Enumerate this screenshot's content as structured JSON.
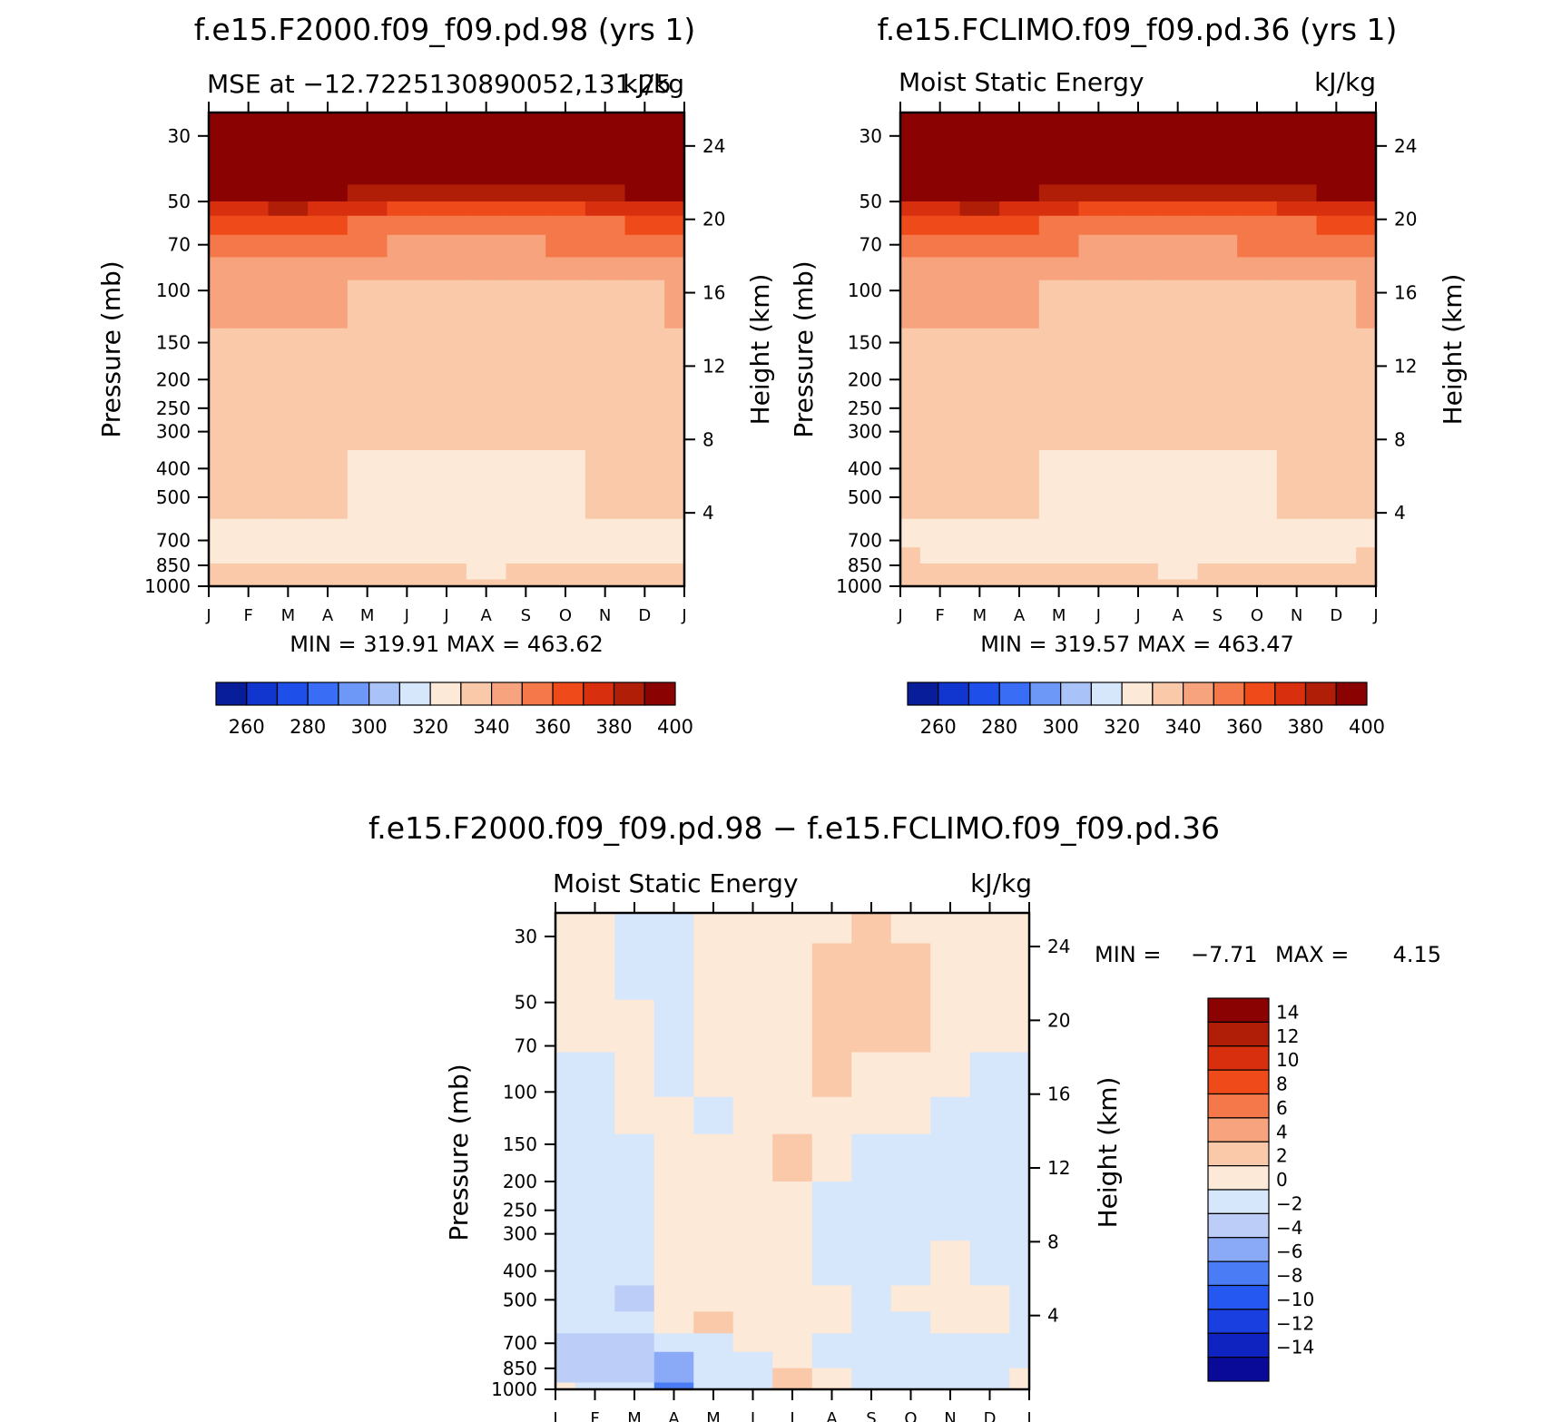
{
  "chart_data": [
    {
      "type": "heatmap",
      "title": "f.e15.F2000.f09_f09.pd.98 (yrs  1)",
      "left_string": "MSE at −12.7225130890052,131.25",
      "right_string": "kJ/kg",
      "xlabel": "",
      "ylabel": "Pressure (mb)",
      "ylabel_right": "Height (km)",
      "x_ticks": [
        "J",
        "F",
        "M",
        "A",
        "M",
        "J",
        "J",
        "A",
        "S",
        "O",
        "N",
        "D",
        "J"
      ],
      "y_ticks": [
        "30",
        "50",
        "70",
        "100",
        "150",
        "200",
        "250",
        "300",
        "400",
        "500",
        "700",
        "850",
        "1000"
      ],
      "y_ticks_right": [
        "24",
        "20",
        "16",
        "12",
        "8",
        "4"
      ],
      "ylim": [
        1000,
        25
      ],
      "min_max_text": "MIN = 319.91  MAX = 463.62",
      "colorbar_labels": [
        "260",
        "280",
        "300",
        "320",
        "340",
        "360",
        "380",
        "400"
      ],
      "colorbar_levels": [
        250,
        260,
        270,
        280,
        290,
        300,
        310,
        320,
        330,
        340,
        350,
        360,
        370,
        380,
        390,
        400
      ],
      "levels_mb": [
        25,
        40,
        48,
        52,
        60,
        70,
        85,
        100,
        180,
        240,
        500,
        700,
        780,
        900,
        1000
      ],
      "data_months": [
        "J",
        "F",
        "M",
        "A",
        "M",
        "J",
        "J",
        "A",
        "S",
        "O",
        "N",
        "D",
        "J"
      ],
      "values": [
        [
          465,
          465,
          465,
          465,
          465,
          465,
          465,
          465,
          465,
          465,
          465,
          465,
          465
        ],
        [
          455,
          455,
          456,
          455,
          452,
          450,
          449,
          449,
          450,
          450,
          452,
          454,
          455
        ],
        [
          392,
          395,
          398,
          392,
          386,
          382,
          380,
          380,
          381,
          383,
          386,
          390,
          392
        ],
        [
          375,
          377,
          380,
          376,
          371,
          368,
          366,
          366,
          367,
          369,
          371,
          374,
          375
        ],
        [
          362,
          364,
          366,
          363,
          359,
          356,
          355,
          355,
          356,
          357,
          359,
          361,
          362
        ],
        [
          355,
          356,
          357,
          354,
          351,
          349,
          348,
          348,
          349,
          350,
          351,
          353,
          355
        ],
        [
          345,
          346,
          347,
          345,
          343,
          341,
          340,
          340,
          341,
          342,
          343,
          344,
          345
        ],
        [
          340,
          340,
          341,
          340,
          339,
          338,
          337,
          337,
          338,
          338,
          339,
          339,
          340
        ],
        [
          338,
          336,
          337,
          338,
          338,
          337,
          335,
          334,
          335,
          336,
          338,
          339,
          338
        ],
        [
          335,
          334,
          335,
          334,
          333,
          333,
          332,
          332,
          333,
          334,
          335,
          336,
          335
        ],
        [
          332,
          331,
          331,
          330,
          328,
          327,
          327,
          326,
          327,
          328,
          330,
          331,
          332
        ],
        [
          327,
          327,
          328,
          327,
          326,
          325,
          325,
          325,
          325,
          326,
          327,
          327,
          327
        ],
        [
          329,
          328,
          328,
          328,
          327,
          326,
          326,
          326,
          326,
          327,
          328,
          329,
          329
        ],
        [
          332,
          331,
          331,
          331,
          331,
          330,
          330,
          328,
          330,
          330,
          331,
          332,
          332
        ],
        [
          336,
          335,
          334,
          333,
          333,
          333,
          332,
          331,
          332,
          333,
          335,
          336,
          336
        ]
      ],
      "colors": {
        "minus_above": "#0a0a7a",
        "bins": [
          "#081d99",
          "#1136d0",
          "#1e4fe9",
          "#3a6df5",
          "#6e98f8",
          "#a9c2f8",
          "#d6e7fb",
          "#fde9d8",
          "#f9c9aa",
          "#f7a47e",
          "#f4784a",
          "#ef4b1a",
          "#d8300e",
          "#b01e08",
          "#8b0202"
        ]
      }
    },
    {
      "type": "heatmap",
      "title": "f.e15.FCLIMO.f09_f09.pd.36 (yrs  1)",
      "left_string": "Moist Static Energy",
      "right_string": "kJ/kg",
      "xlabel": "",
      "ylabel": "Pressure (mb)",
      "ylabel_right": "Height (km)",
      "x_ticks": [
        "J",
        "F",
        "M",
        "A",
        "M",
        "J",
        "J",
        "A",
        "S",
        "O",
        "N",
        "D",
        "J"
      ],
      "y_ticks": [
        "30",
        "50",
        "70",
        "100",
        "150",
        "200",
        "250",
        "300",
        "400",
        "500",
        "700",
        "850",
        "1000"
      ],
      "y_ticks_right": [
        "24",
        "20",
        "16",
        "12",
        "8",
        "4"
      ],
      "ylim": [
        1000,
        25
      ],
      "min_max_text": "MIN = 319.57  MAX = 463.47",
      "colorbar_labels": [
        "260",
        "280",
        "300",
        "320",
        "340",
        "360",
        "380",
        "400"
      ],
      "colorbar_levels": [
        250,
        260,
        270,
        280,
        290,
        300,
        310,
        320,
        330,
        340,
        350,
        360,
        370,
        380,
        390,
        400
      ],
      "levels_mb": [
        25,
        40,
        48,
        52,
        60,
        70,
        85,
        100,
        180,
        240,
        500,
        700,
        780,
        900,
        1000
      ],
      "data_months": [
        "J",
        "F",
        "M",
        "A",
        "M",
        "J",
        "J",
        "A",
        "S",
        "O",
        "N",
        "D",
        "J"
      ],
      "values": [
        [
          465,
          465,
          465,
          465,
          465,
          465,
          465,
          465,
          465,
          465,
          465,
          465,
          465
        ],
        [
          455,
          456,
          456,
          455,
          452,
          450,
          449,
          449,
          450,
          450,
          452,
          454,
          455
        ],
        [
          392,
          396,
          398,
          392,
          386,
          382,
          380,
          380,
          381,
          383,
          386,
          390,
          392
        ],
        [
          375,
          378,
          380,
          376,
          371,
          368,
          366,
          366,
          367,
          369,
          371,
          374,
          375
        ],
        [
          362,
          364,
          366,
          363,
          359,
          356,
          355,
          355,
          356,
          357,
          359,
          361,
          362
        ],
        [
          355,
          356,
          357,
          354,
          351,
          349,
          348,
          348,
          349,
          350,
          351,
          353,
          355
        ],
        [
          345,
          346,
          347,
          345,
          343,
          341,
          340,
          340,
          341,
          342,
          343,
          344,
          345
        ],
        [
          340,
          340,
          341,
          340,
          339,
          338,
          337,
          337,
          338,
          338,
          339,
          339,
          340
        ],
        [
          338,
          335,
          337,
          338,
          338,
          337,
          335,
          334,
          335,
          336,
          338,
          339,
          338
        ],
        [
          335,
          334,
          335,
          334,
          332,
          332,
          332,
          332,
          333,
          334,
          334,
          336,
          335
        ],
        [
          332,
          331,
          331,
          330,
          328,
          327,
          327,
          326,
          327,
          328,
          330,
          331,
          332
        ],
        [
          328,
          327,
          328,
          326,
          325,
          325,
          325,
          324,
          325,
          326,
          327,
          327,
          328
        ],
        [
          330,
          329,
          329,
          328,
          327,
          326,
          326,
          326,
          326,
          327,
          328,
          329,
          330
        ],
        [
          332,
          331,
          331,
          331,
          331,
          330,
          330,
          328,
          330,
          330,
          331,
          332,
          332
        ],
        [
          336,
          335,
          334,
          333,
          333,
          333,
          332,
          331,
          332,
          333,
          335,
          336,
          336
        ]
      ],
      "colors": {
        "minus_above": "#0a0a7a",
        "bins": [
          "#081d99",
          "#1136d0",
          "#1e4fe9",
          "#3a6df5",
          "#6e98f8",
          "#a9c2f8",
          "#d6e7fb",
          "#fde9d8",
          "#f9c9aa",
          "#f7a47e",
          "#f4784a",
          "#ef4b1a",
          "#d8300e",
          "#b01e08",
          "#8b0202"
        ]
      }
    },
    {
      "type": "heatmap",
      "title": "f.e15.F2000.f09_f09.pd.98 − f.e15.FCLIMO.f09_f09.pd.36",
      "left_string": "Moist Static Energy",
      "right_string": "kJ/kg",
      "xlabel": "",
      "ylabel": "Pressure (mb)",
      "ylabel_right": "Height (km)",
      "x_ticks": [
        "J",
        "F",
        "M",
        "A",
        "M",
        "J",
        "J",
        "A",
        "S",
        "O",
        "N",
        "D",
        "J"
      ],
      "y_ticks": [
        "30",
        "50",
        "70",
        "100",
        "150",
        "200",
        "250",
        "300",
        "400",
        "500",
        "700",
        "850",
        "1000"
      ],
      "y_ticks_right": [
        "24",
        "20",
        "16",
        "12",
        "8",
        "4"
      ],
      "ylim": [
        1000,
        25
      ],
      "min_label": "MIN =",
      "min_value": "−7.71",
      "max_label": "MAX =",
      "max_value": "4.15",
      "colorbar_labels": [
        "14",
        "12",
        "10",
        "8",
        "6",
        "4",
        "2",
        "0",
        "−2",
        "−4",
        "−6",
        "−8",
        "−10",
        "−12",
        "−14"
      ],
      "colorbar_levels": [
        -14,
        -12,
        -10,
        -8,
        -6,
        -4,
        -2,
        0,
        2,
        4,
        6,
        8,
        10,
        12,
        14
      ],
      "levels_mb": [
        25,
        40,
        60,
        90,
        120,
        160,
        250,
        400,
        500,
        600,
        700,
        800,
        900,
        1000
      ],
      "data_months": [
        "J",
        "F",
        "M",
        "A",
        "M",
        "J",
        "J",
        "A",
        "S",
        "O",
        "N",
        "D",
        "J"
      ],
      "values": [
        [
          0.5,
          0.5,
          -0.8,
          -0.8,
          0.5,
          0.5,
          0.5,
          1.0,
          2.5,
          0.5,
          0.5,
          0.5,
          0.5
        ],
        [
          0.5,
          0.5,
          -0.5,
          -0.8,
          0.5,
          0.5,
          0.5,
          2.2,
          3.0,
          2.0,
          0.5,
          0.5,
          0.5
        ],
        [
          0.5,
          0.5,
          0.5,
          -0.8,
          0.5,
          0.5,
          0.5,
          2.5,
          3.5,
          2.3,
          0.5,
          0.5,
          0.5
        ],
        [
          -0.5,
          -0.5,
          0.5,
          -0.6,
          0.3,
          0.5,
          0.5,
          2.0,
          1.5,
          1.5,
          0.3,
          -0.5,
          -0.5
        ],
        [
          -0.8,
          -0.8,
          0.3,
          0.3,
          -0.5,
          0.5,
          0.5,
          0.5,
          0.5,
          0.5,
          -0.5,
          -0.8,
          -0.8
        ],
        [
          -1.0,
          -1.0,
          -0.5,
          0.5,
          0.5,
          0.5,
          2.5,
          0.5,
          -0.5,
          -0.8,
          -0.8,
          -1.0,
          -1.0
        ],
        [
          -1.0,
          -1.0,
          -0.8,
          0.3,
          0.5,
          0.5,
          0.5,
          -0.5,
          -0.8,
          -1.0,
          -0.8,
          -1.0,
          -1.0
        ],
        [
          -1.0,
          -1.0,
          -0.8,
          0.3,
          0.5,
          0.5,
          0.5,
          -0.3,
          -0.8,
          -0.5,
          0.5,
          -0.5,
          -1.0
        ],
        [
          -1.0,
          -1.0,
          -2.5,
          0.2,
          0.8,
          0.5,
          0.5,
          0.5,
          -0.5,
          0.5,
          0.8,
          0.3,
          -1.0
        ],
        [
          -0.8,
          -0.8,
          -0.8,
          0.3,
          2.5,
          0.5,
          0.5,
          0.5,
          -0.5,
          -0.5,
          0.5,
          0.5,
          -0.8
        ],
        [
          -3.0,
          -3.0,
          -2.5,
          -0.8,
          -0.5,
          0.5,
          0.5,
          -0.5,
          -0.8,
          -1.0,
          -0.5,
          -0.8,
          -0.8
        ],
        [
          -3.5,
          -3.0,
          -3.5,
          -4.5,
          -0.8,
          -0.5,
          0.3,
          -0.5,
          -0.8,
          -0.8,
          -0.8,
          -0.8,
          -0.8
        ],
        [
          -2.5,
          -3.0,
          -3.5,
          -6.0,
          -0.8,
          -0.5,
          2.5,
          0.5,
          -0.5,
          -0.5,
          -0.5,
          -0.5,
          0.5
        ],
        [
          0.5,
          -0.5,
          -2.0,
          -7.5,
          -0.8,
          -0.5,
          2.0,
          0.5,
          -0.5,
          -0.5,
          -0.5,
          -0.5,
          0.5
        ]
      ],
      "colors": {
        "minus_above": "#0a0a7a",
        "bins": [
          "#0a0a99",
          "#0f23c0",
          "#1a3fe0",
          "#2558f0",
          "#4a7df5",
          "#8aaaf7",
          "#bccdf8",
          "#d6e7fb",
          "#fde9d8",
          "#f9c9aa",
          "#f7a47e",
          "#f4784a",
          "#ef4b1a",
          "#d8300e",
          "#b01e08",
          "#8b0202"
        ]
      }
    }
  ]
}
